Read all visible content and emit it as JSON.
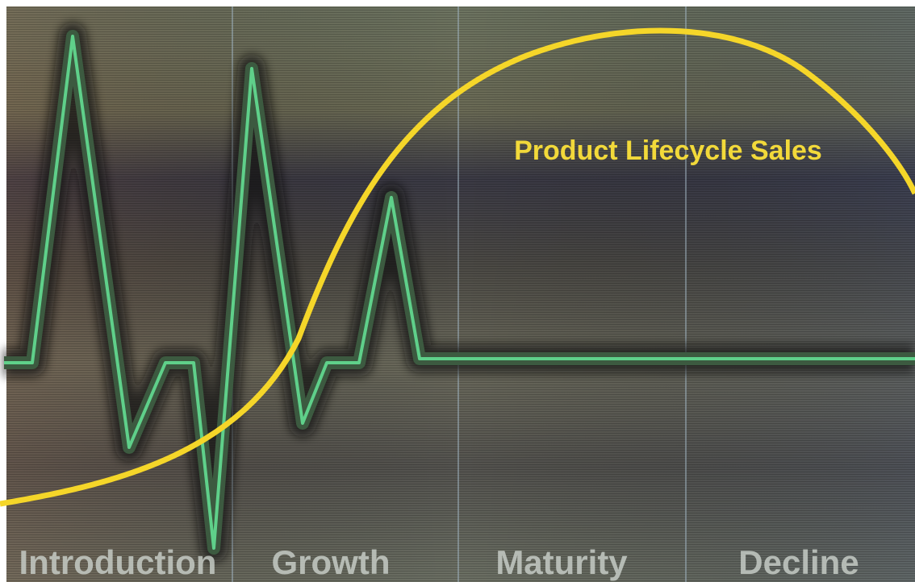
{
  "title": "Product Lifecycle Sales",
  "stages": [
    "Introduction",
    "Growth",
    "Maturity",
    "Decline"
  ]
}
